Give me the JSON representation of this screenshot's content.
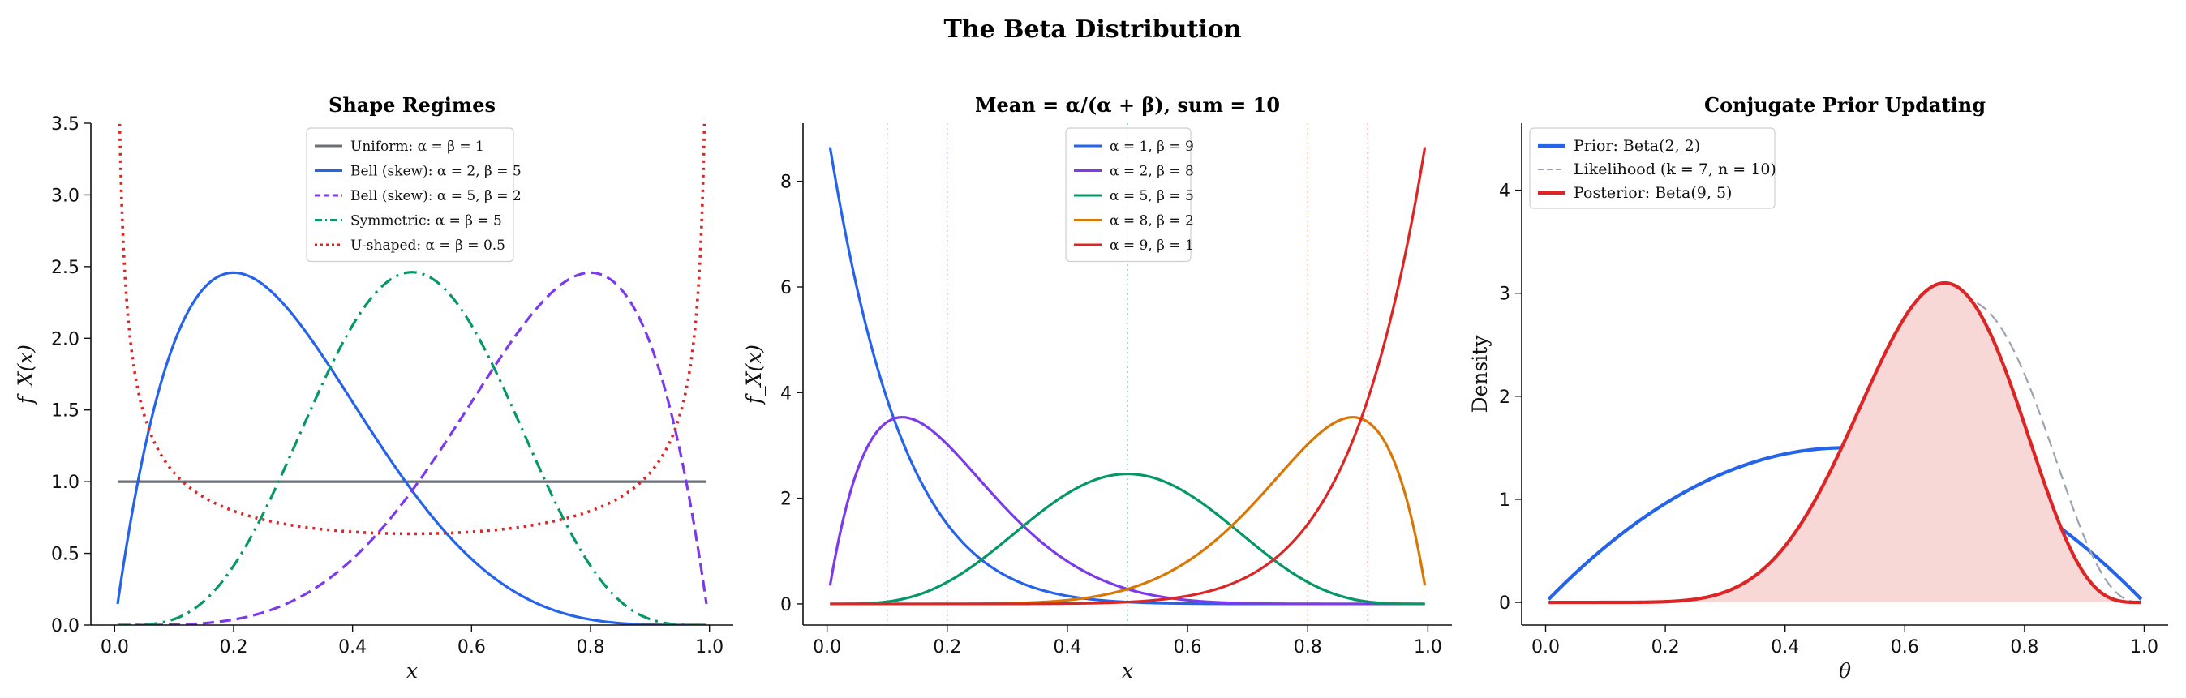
{
  "figure": {
    "title": "The Beta Distribution"
  },
  "chart_data": [
    {
      "type": "line",
      "title": "Shape Regimes",
      "xlabel": "x",
      "ylabel": "f_X(x)",
      "xlim": [
        -0.04,
        1.04
      ],
      "ylim": [
        0,
        3.5
      ],
      "xticks": [
        "0.0",
        "0.2",
        "0.4",
        "0.6",
        "0.8",
        "1.0"
      ],
      "yticks": [
        "0.0",
        "0.5",
        "1.0",
        "1.5",
        "2.0",
        "2.5",
        "3.0",
        "3.5"
      ],
      "legend_position": "top-center",
      "series": [
        {
          "name": "Uniform: α = β = 1",
          "alpha": 1,
          "beta": 1,
          "color": "#6b6f78",
          "dash": "solid"
        },
        {
          "name": "Bell (skew): α = 2, β = 5",
          "alpha": 2,
          "beta": 5,
          "color": "#2563eb",
          "dash": "solid"
        },
        {
          "name": "Bell (skew): α = 5, β = 2",
          "alpha": 5,
          "beta": 2,
          "color": "#7c3aed",
          "dash": "dashed"
        },
        {
          "name": "Symmetric: α = β = 5",
          "alpha": 5,
          "beta": 5,
          "color": "#059669",
          "dash": "dashdot"
        },
        {
          "name": "U-shaped: α = β = 0.5",
          "alpha": 0.5,
          "beta": 0.5,
          "color": "#dc2626",
          "dash": "dotted"
        }
      ]
    },
    {
      "type": "line",
      "title": "Mean = α/(α + β), sum = 10",
      "xlabel": "x",
      "ylabel": "f_X(x)",
      "xlim": [
        -0.04,
        1.04
      ],
      "ylim": [
        -0.4,
        9.1
      ],
      "xticks": [
        "0.0",
        "0.2",
        "0.4",
        "0.6",
        "0.8",
        "1.0"
      ],
      "yticks": [
        "0",
        "2",
        "4",
        "6",
        "8"
      ],
      "legend_position": "top-center",
      "mean_lines": [
        0.1,
        0.2,
        0.5,
        0.8,
        0.9
      ],
      "series": [
        {
          "name": "α = 1, β = 9",
          "alpha": 1,
          "beta": 9,
          "color": "#2563eb",
          "dash": "solid"
        },
        {
          "name": "α = 2, β = 8",
          "alpha": 2,
          "beta": 8,
          "color": "#7c3aed",
          "dash": "solid"
        },
        {
          "name": "α = 5, β = 5",
          "alpha": 5,
          "beta": 5,
          "color": "#059669",
          "dash": "solid"
        },
        {
          "name": "α = 8, β = 2",
          "alpha": 8,
          "beta": 2,
          "color": "#d97706",
          "dash": "solid"
        },
        {
          "name": "α = 9, β = 1",
          "alpha": 9,
          "beta": 1,
          "color": "#dc2626",
          "dash": "solid"
        }
      ]
    },
    {
      "type": "line",
      "title": "Conjugate Prior Updating",
      "xlabel": "θ",
      "ylabel": "Density",
      "xlim": [
        -0.04,
        1.04
      ],
      "ylim": [
        -0.22,
        4.65
      ],
      "xticks": [
        "0.0",
        "0.2",
        "0.4",
        "0.6",
        "0.8",
        "1.0"
      ],
      "yticks": [
        "0",
        "1",
        "2",
        "3",
        "4"
      ],
      "legend_position": "top-left",
      "series": [
        {
          "name": "Prior: Beta(2, 2)",
          "alpha": 2,
          "beta": 2,
          "color": "#2563eb",
          "dash": "solid"
        },
        {
          "name": "Likelihood (k = 7, n = 10)",
          "alpha": 8,
          "beta": 4,
          "color": "#9ca3af",
          "dash": "dashed"
        },
        {
          "name": "Posterior: Beta(9, 5)",
          "alpha": 9,
          "beta": 5,
          "color": "#dc2626",
          "dash": "solid",
          "fill": "#f8d7d7"
        }
      ]
    }
  ]
}
